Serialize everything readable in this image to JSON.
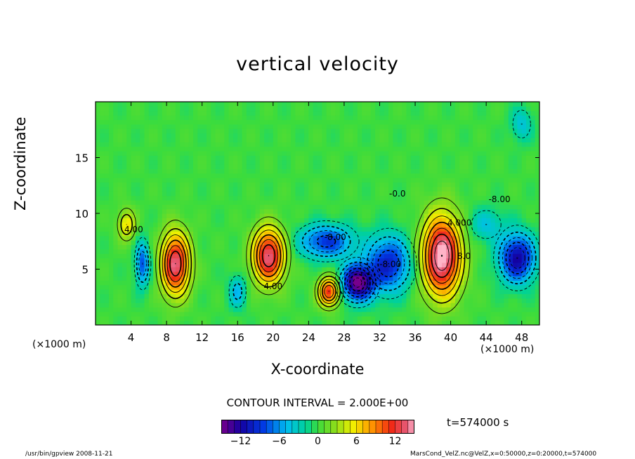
{
  "chart_data": {
    "type": "heatmap",
    "title": "vertical velocity",
    "xlabel": "X-coordinate",
    "ylabel": "Z-coordinate",
    "x_unit_left": "(×1000 m)",
    "x_unit_right": "(×1000 m)",
    "xlim": [
      0,
      50
    ],
    "ylim": [
      0,
      20
    ],
    "xticks": [
      4,
      8,
      12,
      16,
      20,
      24,
      28,
      32,
      36,
      40,
      44,
      48
    ],
    "yticks": [
      5,
      10,
      15
    ],
    "contour_interval_text": "CONTOUR INTERVAL = 2.000E+00",
    "contour_labels": [
      "4.00",
      "4.00",
      "-8.00",
      "4.000",
      "8.0",
      "-8.00",
      "-8.00",
      "-0.0"
    ],
    "colorbar": {
      "min": -15,
      "max": 15,
      "ticks": [
        -12,
        -6,
        0,
        6,
        12
      ]
    },
    "cells": [
      {
        "x": 9.0,
        "z": 5.5,
        "value": 14,
        "sx": 1.6,
        "sz": 2.8
      },
      {
        "x": 19.5,
        "z": 6.2,
        "value": 14,
        "sx": 1.8,
        "sz": 2.5
      },
      {
        "x": 26.3,
        "z": 3.0,
        "value": 12,
        "sx": 1.2,
        "sz": 1.3
      },
      {
        "x": 39.0,
        "z": 6.2,
        "value": 16,
        "sx": 2.2,
        "sz": 3.6
      },
      {
        "x": 5.3,
        "z": 5.5,
        "value": -8,
        "sx": 0.8,
        "sz": 2.0
      },
      {
        "x": 29.5,
        "z": 3.8,
        "value": -15,
        "sx": 1.8,
        "sz": 1.6
      },
      {
        "x": 33.0,
        "z": 5.5,
        "value": -10,
        "sx": 2.5,
        "sz": 2.5
      },
      {
        "x": 26.0,
        "z": 7.5,
        "value": -9,
        "sx": 3.0,
        "sz": 1.5
      },
      {
        "x": 47.5,
        "z": 6.0,
        "value": -12,
        "sx": 2.0,
        "sz": 2.2
      },
      {
        "x": 3.5,
        "z": 9.0,
        "value": 6,
        "sx": 1.0,
        "sz": 1.4
      },
      {
        "x": 16.0,
        "z": 3.0,
        "value": -5,
        "sx": 1.0,
        "sz": 1.5
      },
      {
        "x": 48.0,
        "z": 18.0,
        "value": -4,
        "sx": 1.2,
        "sz": 1.5
      },
      {
        "x": 44.0,
        "z": 9.0,
        "value": -4,
        "sx": 2.0,
        "sz": 1.5
      }
    ]
  },
  "meta": {
    "time_label": "t=574000 s",
    "footer_left": "/usr/bin/gpview   2008-11-21",
    "footer_right": "MarsCond_VelZ.nc@VelZ,x=0:50000,z=0:20000,t=574000"
  }
}
